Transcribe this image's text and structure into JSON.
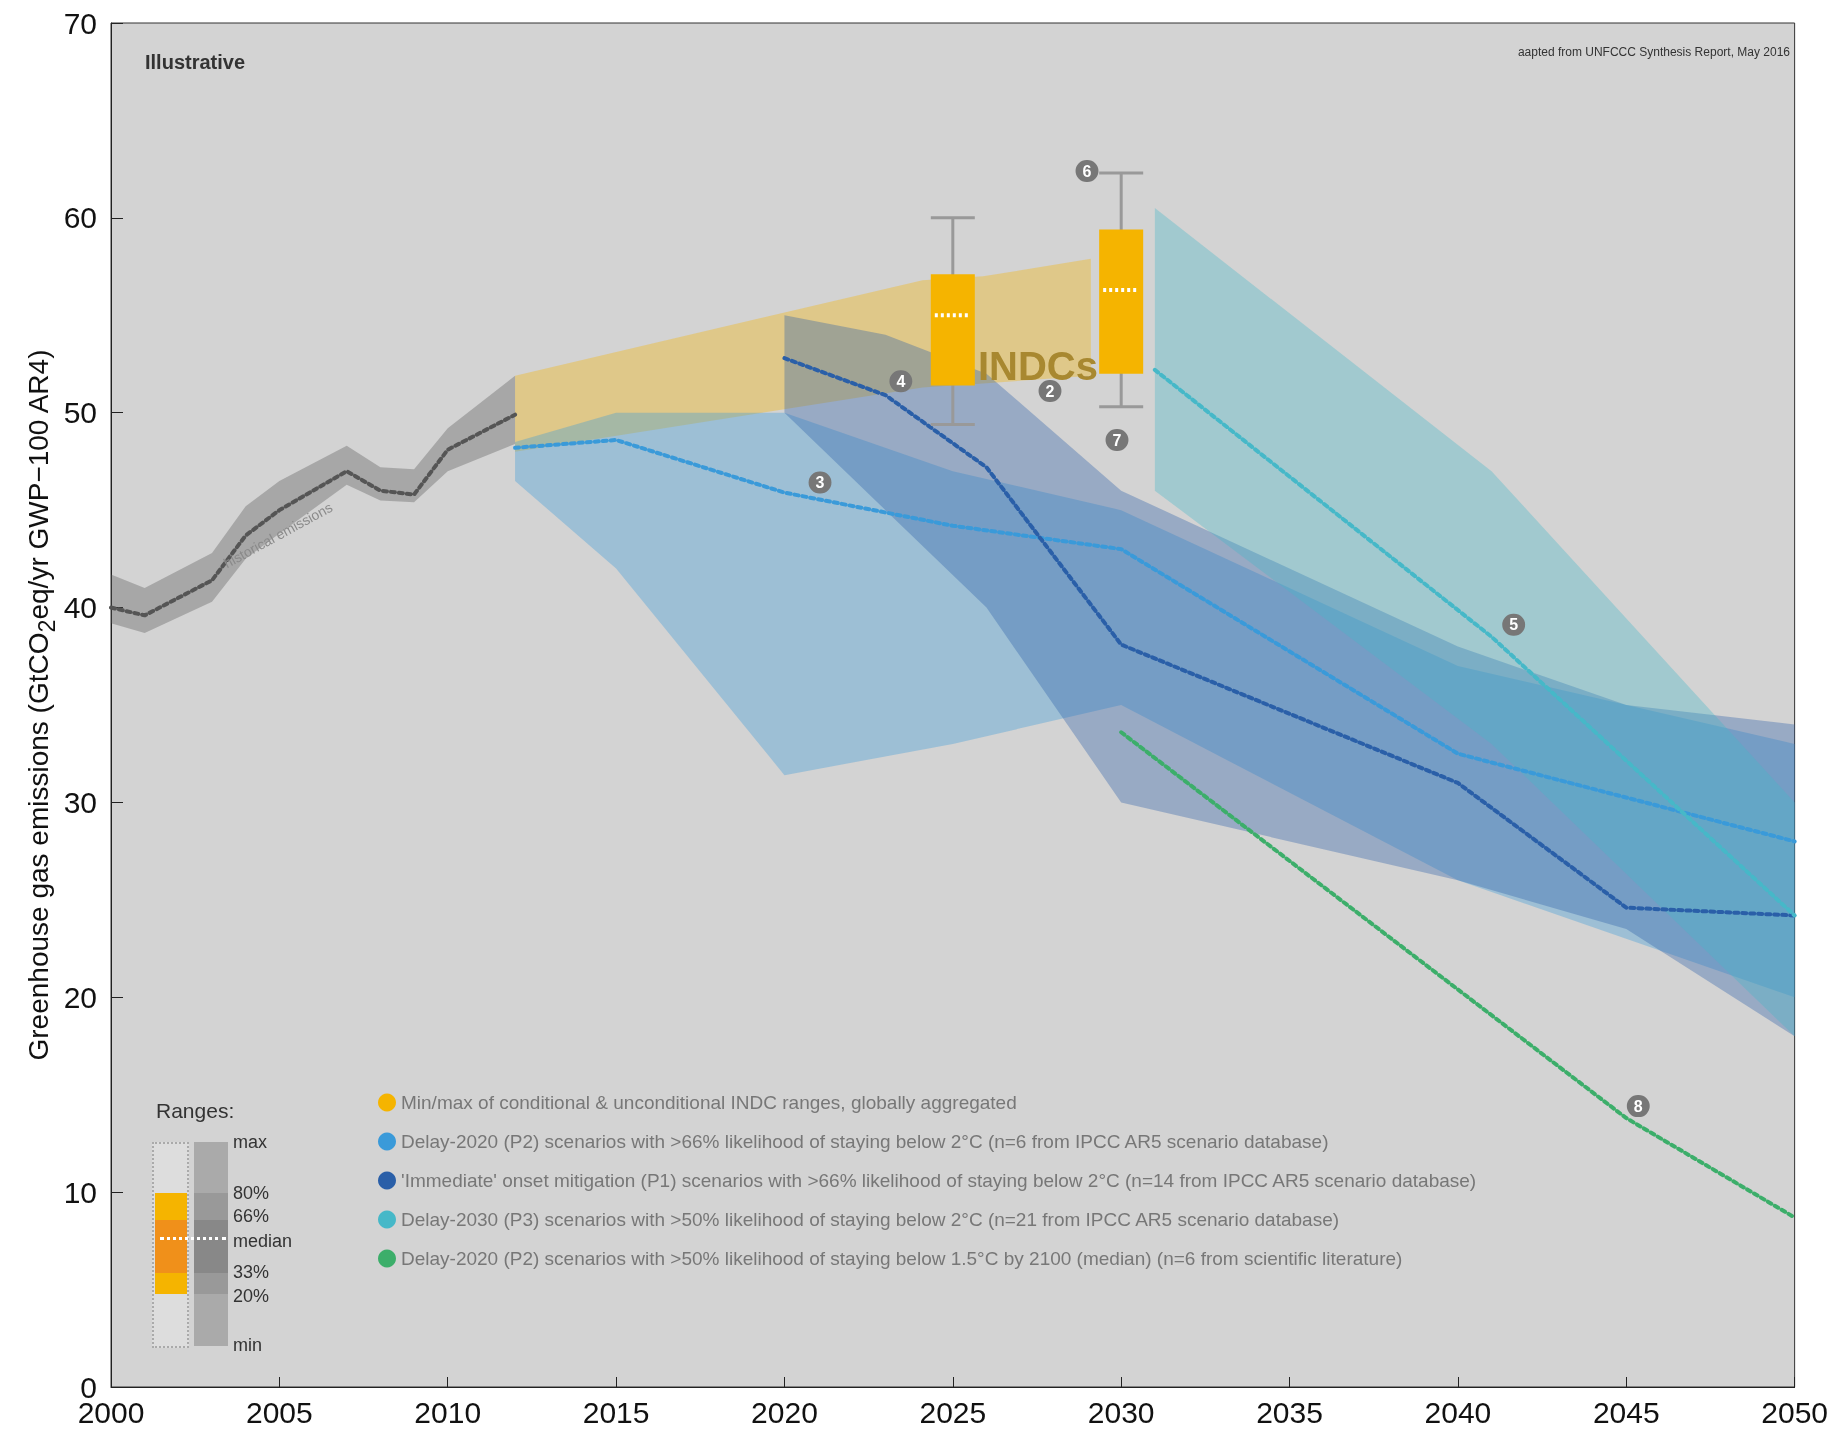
{
  "chart_data": {
    "type": "line",
    "ylabel": "Greenhouse gas emissions (GtCO$_{2}$eq/yr GWP−100 AR4)",
    "xlim": [
      2000,
      2050
    ],
    "xticks": [
      2000,
      2005,
      2010,
      2015,
      2020,
      2025,
      2030,
      2035,
      2040,
      2045,
      2050
    ],
    "ylim": [
      0,
      70
    ],
    "yticks": [
      0,
      10,
      20,
      30,
      40,
      50,
      60,
      70
    ],
    "grid": false,
    "legend": "bottom left",
    "line_style": "dotted",
    "marker": "none",
    "annotations": [
      "Illustrative",
      "aapted from UNFCCC Synthesis Report, May 2016",
      "Ranges:",
      "max",
      "80%",
      "66%",
      "median",
      "33%",
      "20%",
      "min",
      "INDCs",
      "historical emissions",
      "2",
      "6",
      "7",
      {
        "text": "3",
        "x": 2020.7,
        "y": 45.8
      },
      {
        "text": "4",
        "x": 2023.1,
        "y": 51.0
      },
      {
        "text": "5",
        "x": 2041.3,
        "y": 38.5
      },
      {
        "text": "8",
        "x": 2045,
        "y": 13.8
      }
    ],
    "series": [
      {
        "color": "#555555",
        "x": [
          2000,
          2001,
          2003,
          2004,
          2005,
          2007,
          2008,
          2009,
          2010,
          2012
        ],
        "values": [
          40.0,
          39.6,
          41.4,
          43.7,
          45.0,
          47.0,
          46.0,
          45.8,
          48.1,
          49.9
        ],
        "lower": [
          39.2,
          38.7,
          40.3,
          42.5,
          43.8,
          46.3,
          45.5,
          45.4,
          47.0,
          48.4
        ],
        "upper": [
          41.7,
          41.0,
          42.8,
          45.2,
          46.5,
          48.3,
          47.2,
          47.1,
          49.2,
          51.9
        ]
      },
      {
        "color": "#f5b400",
        "x": [
          2012,
          2024.1,
          2025.9,
          2029.1
        ],
        "values": [
          null,
          null,
          null,
          null
        ],
        "lower": [
          48.0,
          51.3,
          51.5,
          51.9
        ],
        "upper": [
          51.9,
          56.8,
          57.0,
          57.9
        ]
      },
      {
        "type": "box",
        "name": "Min/max of conditional & unconditional INDC ranges, globally aggregated",
        "color": "#f5b400",
        "x": [
          2025,
          2030
        ],
        "boxes": [
          {
            "low": 49.4,
            "q1": 51.4,
            "median": 55.0,
            "q3": 57.1,
            "high": 60.0
          },
          {
            "low": 50.3,
            "q1": 52.0,
            "median": 56.3,
            "q3": 59.4,
            "high": 62.3
          }
        ]
      },
      {
        "name": "Delay-2020 (P2) scenarios with >66% likelihood of staying below 2°C (n=6 from IPCC AR5 scenario database)",
        "color": "#3a9ad9",
        "x": [
          2012,
          2015,
          2020,
          2025,
          2030,
          2040,
          2050
        ],
        "values": [
          48.2,
          48.6,
          45.9,
          44.2,
          43.0,
          32.5,
          28.0
        ],
        "lower": [
          46.5,
          42.0,
          31.4,
          33.0,
          35.0,
          26.0,
          20.0
        ],
        "upper": [
          48.5,
          50.0,
          50.0,
          47.0,
          45.0,
          37.0,
          33.0
        ]
      },
      {
        "name": "'Immediate' onset mitigation (P1) scenarios with >66% likelihood of staying below 2°C (n=14 from IPCC AR5 scenario database)",
        "color": "#2a5fa8",
        "x": [
          2020,
          2023,
          2026,
          2030,
          2040,
          2045,
          2050
        ],
        "values": [
          52.8,
          50.9,
          47.2,
          38.1,
          31.0,
          24.6,
          24.2
        ],
        "lower": [
          50.0,
          45.0,
          40.0,
          30.0,
          26.0,
          23.5,
          18.0
        ],
        "upper": [
          55.0,
          54.0,
          52.0,
          46.0,
          38.0,
          35.0,
          34.0
        ]
      },
      {
        "name": "Delay-2030 (P3) scenarios with >50% likelihood of staying below 2°C (n=21 from IPCC AR5 scenario database)",
        "color": "#46b8c8",
        "x": [
          2031,
          2041,
          2050
        ],
        "values": [
          52.2,
          38.5,
          24.2
        ],
        "lower": [
          46.0,
          33.0,
          18.0
        ],
        "upper": [
          60.5,
          47.0,
          30.0
        ]
      },
      {
        "name": "Delay-2020 (P2) scenarios with >50% likelihood of staying below 1.5°C by 2100 (median) (n=6 from scientific literature)",
        "color": "#3cae6a",
        "x": [
          2030,
          2045,
          2050
        ],
        "values": [
          33.6,
          13.8,
          8.7
        ]
      }
    ]
  }
}
